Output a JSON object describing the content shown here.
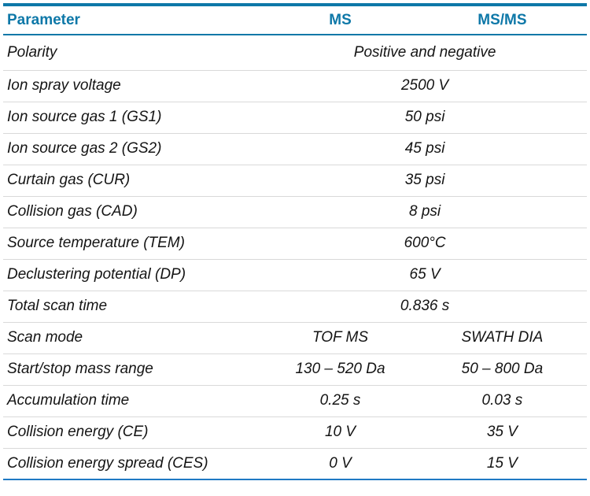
{
  "colors": {
    "accent_teal": "#0e78a8",
    "bottom_blue": "#1f7ac4",
    "separator_gray": "#d9d9d9",
    "text_black": "#141414"
  },
  "table": {
    "header": {
      "parameter": "Parameter",
      "ms": "MS",
      "msms": "MS/MS"
    },
    "rows": [
      {
        "parameter": "Polarity",
        "value": "Positive and negative"
      },
      {
        "parameter": "Ion spray voltage",
        "value": "2500 V"
      },
      {
        "parameter": "Ion source gas 1 (GS1)",
        "value": "50 psi"
      },
      {
        "parameter": "Ion source gas 2 (GS2)",
        "value": "45 psi"
      },
      {
        "parameter": "Curtain gas (CUR)",
        "value": "35 psi"
      },
      {
        "parameter": "Collision gas (CAD)",
        "value": "8 psi"
      },
      {
        "parameter": "Source temperature (TEM)",
        "value": "600°C"
      },
      {
        "parameter": "Declustering potential (DP)",
        "value": "65 V"
      },
      {
        "parameter": "Total scan time",
        "value": "0.836 s"
      },
      {
        "parameter": "Scan mode",
        "ms": "TOF MS",
        "msms": "SWATH DIA"
      },
      {
        "parameter": "Start/stop mass range",
        "ms": "130 – 520 Da",
        "msms": "50 – 800 Da"
      },
      {
        "parameter": "Accumulation time",
        "ms": "0.25 s",
        "msms": "0.03 s"
      },
      {
        "parameter": "Collision energy (CE)",
        "ms": "10 V",
        "msms": "35 V"
      },
      {
        "parameter": "Collision energy spread (CES)",
        "ms": "0 V",
        "msms": "15 V"
      }
    ]
  }
}
